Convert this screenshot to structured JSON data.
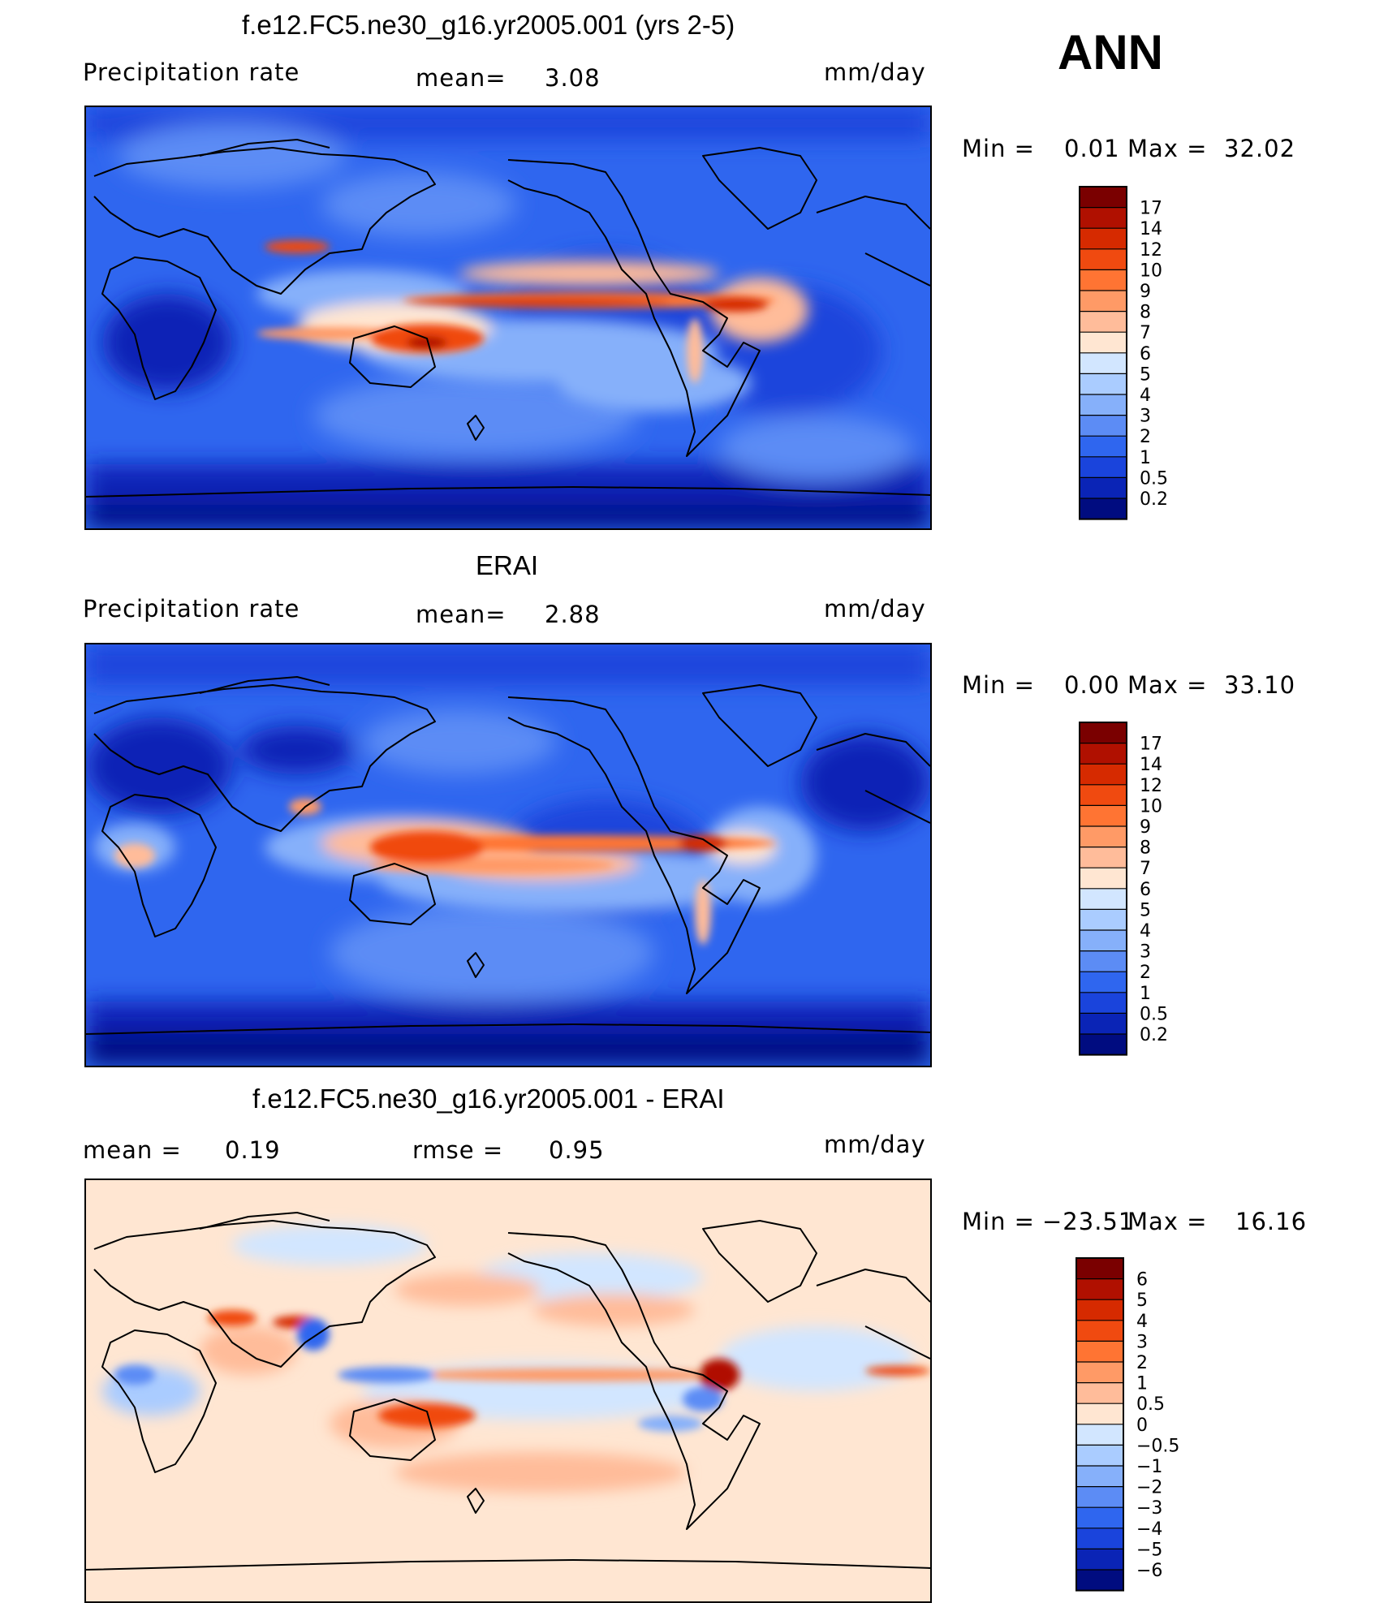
{
  "season": "ANN",
  "panels": [
    {
      "title": "f.e12.FC5.ne30_g16.yr2005.001 (yrs 2-5)",
      "left_label": "Precipitation  rate",
      "mid_label": "mean=",
      "mid_value": "3.08",
      "units": "mm/day",
      "min_label": "Min  =",
      "min_value": "0.01",
      "max_label": "Max  =",
      "max_value": "32.02"
    },
    {
      "title": "ERAI",
      "left_label": "Precipitation  rate",
      "mid_label": "mean=",
      "mid_value": "2.88",
      "units": "mm/day",
      "min_label": "Min  =",
      "min_value": "0.00",
      "max_label": "Max  =",
      "max_value": "33.10"
    },
    {
      "title": "f.e12.FC5.ne30_g16.yr2005.001 - ERAI",
      "left_label": "mean  =",
      "left_value": "0.19",
      "mid_label": "rmse  =",
      "mid_value": "0.95",
      "units": "mm/day",
      "min_label": "Min  =",
      "min_value": "−23.51",
      "max_label": "Max  =",
      "max_value": "16.16"
    }
  ],
  "colorbars": {
    "precip": {
      "labels": [
        "17",
        "14",
        "12",
        "10",
        "9",
        "8",
        "7",
        "6",
        "5",
        "4",
        "3",
        "2",
        "1",
        "0.5",
        "0.2"
      ],
      "colors": [
        "#7a0000",
        "#b01000",
        "#d62a00",
        "#f04a10",
        "#ff7433",
        "#ff9a66",
        "#ffbc9a",
        "#ffe6d2",
        "#d2e6ff",
        "#aaccff",
        "#86b0fa",
        "#5c8cf5",
        "#2f66ef",
        "#1a44dc",
        "#0a24b6",
        "#000c80"
      ]
    },
    "diff": {
      "labels": [
        "6",
        "5",
        "4",
        "3",
        "2",
        "1",
        "0.5",
        "0",
        "−0.5",
        "−1",
        "−2",
        "−3",
        "−4",
        "−5",
        "−6"
      ],
      "colors": [
        "#7a0000",
        "#b01000",
        "#d62a00",
        "#f04a10",
        "#ff7433",
        "#ff9a66",
        "#ffbc9a",
        "#ffe6d2",
        "#d2e6ff",
        "#aaccff",
        "#86b0fa",
        "#5c8cf5",
        "#2f66ef",
        "#1a44dc",
        "#0a24b6",
        "#000c80"
      ]
    }
  },
  "chart_data": [
    {
      "type": "heatmap",
      "title": "f.e12.FC5.ne30_g16.yr2005.001 (yrs 2-5)",
      "variable": "Precipitation rate",
      "units": "mm/day",
      "mean": 3.08,
      "min": 0.01,
      "max": 32.02,
      "levels": [
        0.2,
        0.5,
        1,
        2,
        3,
        4,
        5,
        6,
        7,
        8,
        9,
        10,
        12,
        14,
        17
      ],
      "projection": "cylindrical equidistant, centered on Pacific"
    },
    {
      "type": "heatmap",
      "title": "ERAI",
      "variable": "Precipitation rate",
      "units": "mm/day",
      "mean": 2.88,
      "min": 0.0,
      "max": 33.1,
      "levels": [
        0.2,
        0.5,
        1,
        2,
        3,
        4,
        5,
        6,
        7,
        8,
        9,
        10,
        12,
        14,
        17
      ],
      "projection": "cylindrical equidistant, centered on Pacific"
    },
    {
      "type": "heatmap",
      "title": "f.e12.FC5.ne30_g16.yr2005.001 - ERAI",
      "units": "mm/day",
      "mean": 0.19,
      "rmse": 0.95,
      "min": -23.51,
      "max": 16.16,
      "levels": [
        -6,
        -5,
        -4,
        -3,
        -2,
        -1,
        -0.5,
        0,
        0.5,
        1,
        2,
        3,
        4,
        5,
        6
      ]
    }
  ]
}
